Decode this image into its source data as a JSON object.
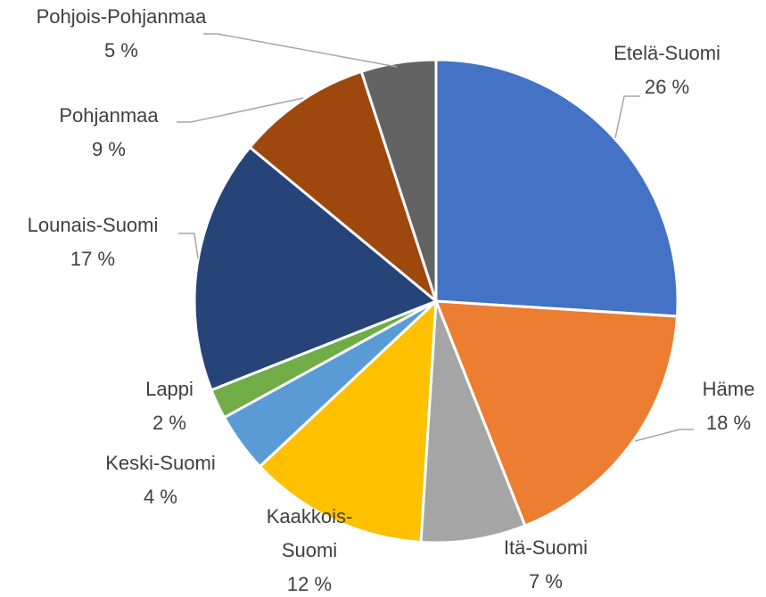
{
  "chart_data": {
    "type": "pie",
    "categories": [
      "Etelä-Suomi",
      "Häme",
      "Itä-Suomi",
      "Kaakkois-Suomi",
      "Keski-Suomi",
      "Lappi",
      "Lounais-Suomi",
      "Pohjanmaa",
      "Pohjois-Pohjanmaa"
    ],
    "values": [
      26,
      18,
      7,
      12,
      4,
      2,
      17,
      9,
      5
    ],
    "value_labels": [
      "26 %",
      "18 %",
      "7 %",
      "12 %",
      "4 %",
      "2 %",
      "17 %",
      "9 %",
      "5 %"
    ],
    "colors": [
      "#4472c4",
      "#ed7d31",
      "#a5a5a5",
      "#ffc000",
      "#5b9bd5",
      "#70ad47",
      "#264478",
      "#9e480e",
      "#636363"
    ]
  }
}
